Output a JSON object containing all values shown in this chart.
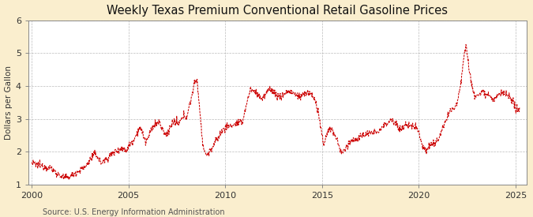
{
  "title": "Weekly Texas Premium Conventional Retail Gasoline Prices",
  "ylabel": "Dollars per Gallon",
  "source": "Source: U.S. Energy Information Administration",
  "line_color": "#cc0000",
  "background_color": "#faeece",
  "plot_background": "#ffffff",
  "grid_color": "#aaaaaa",
  "ylim": [
    1,
    6
  ],
  "yticks": [
    1,
    2,
    3,
    4,
    5,
    6
  ],
  "xticks": [
    2000,
    2005,
    2010,
    2015,
    2020,
    2025
  ],
  "title_fontsize": 10.5,
  "label_fontsize": 7.5,
  "tick_fontsize": 8,
  "source_fontsize": 7,
  "anchors": [
    [
      2000.0,
      1.65
    ],
    [
      2000.3,
      1.6
    ],
    [
      2000.7,
      1.55
    ],
    [
      2001.0,
      1.5
    ],
    [
      2001.4,
      1.3
    ],
    [
      2001.7,
      1.2
    ],
    [
      2002.0,
      1.25
    ],
    [
      2002.4,
      1.4
    ],
    [
      2002.8,
      1.55
    ],
    [
      2003.0,
      1.75
    ],
    [
      2003.3,
      1.95
    ],
    [
      2003.6,
      1.65
    ],
    [
      2003.9,
      1.8
    ],
    [
      2004.0,
      1.85
    ],
    [
      2004.3,
      2.0
    ],
    [
      2004.6,
      2.1
    ],
    [
      2004.9,
      2.05
    ],
    [
      2005.0,
      2.15
    ],
    [
      2005.3,
      2.4
    ],
    [
      2005.6,
      2.75
    ],
    [
      2005.9,
      2.3
    ],
    [
      2006.0,
      2.4
    ],
    [
      2006.3,
      2.8
    ],
    [
      2006.6,
      2.9
    ],
    [
      2006.9,
      2.5
    ],
    [
      2007.0,
      2.55
    ],
    [
      2007.3,
      2.9
    ],
    [
      2007.6,
      2.85
    ],
    [
      2007.9,
      3.1
    ],
    [
      2008.0,
      3.05
    ],
    [
      2008.2,
      3.5
    ],
    [
      2008.4,
      4.05
    ],
    [
      2008.55,
      4.2
    ],
    [
      2008.7,
      3.2
    ],
    [
      2008.85,
      2.2
    ],
    [
      2009.0,
      1.9
    ],
    [
      2009.2,
      2.0
    ],
    [
      2009.5,
      2.3
    ],
    [
      2009.8,
      2.6
    ],
    [
      2010.0,
      2.75
    ],
    [
      2010.3,
      2.8
    ],
    [
      2010.6,
      2.85
    ],
    [
      2010.9,
      2.9
    ],
    [
      2011.0,
      3.2
    ],
    [
      2011.3,
      3.9
    ],
    [
      2011.6,
      3.8
    ],
    [
      2011.9,
      3.6
    ],
    [
      2012.0,
      3.65
    ],
    [
      2012.3,
      3.95
    ],
    [
      2012.6,
      3.75
    ],
    [
      2012.9,
      3.65
    ],
    [
      2013.0,
      3.75
    ],
    [
      2013.3,
      3.85
    ],
    [
      2013.6,
      3.75
    ],
    [
      2013.9,
      3.65
    ],
    [
      2014.0,
      3.75
    ],
    [
      2014.3,
      3.8
    ],
    [
      2014.6,
      3.65
    ],
    [
      2014.8,
      3.2
    ],
    [
      2015.0,
      2.5
    ],
    [
      2015.1,
      2.2
    ],
    [
      2015.3,
      2.65
    ],
    [
      2015.5,
      2.7
    ],
    [
      2015.7,
      2.45
    ],
    [
      2015.9,
      2.15
    ],
    [
      2016.0,
      1.95
    ],
    [
      2016.2,
      2.05
    ],
    [
      2016.4,
      2.3
    ],
    [
      2016.6,
      2.35
    ],
    [
      2016.9,
      2.4
    ],
    [
      2017.0,
      2.45
    ],
    [
      2017.3,
      2.55
    ],
    [
      2017.6,
      2.55
    ],
    [
      2017.9,
      2.65
    ],
    [
      2018.0,
      2.65
    ],
    [
      2018.3,
      2.85
    ],
    [
      2018.6,
      3.0
    ],
    [
      2018.9,
      2.8
    ],
    [
      2019.0,
      2.65
    ],
    [
      2019.3,
      2.8
    ],
    [
      2019.6,
      2.8
    ],
    [
      2019.9,
      2.75
    ],
    [
      2020.0,
      2.65
    ],
    [
      2020.2,
      2.15
    ],
    [
      2020.4,
      2.05
    ],
    [
      2020.6,
      2.2
    ],
    [
      2020.9,
      2.3
    ],
    [
      2021.0,
      2.35
    ],
    [
      2021.3,
      2.8
    ],
    [
      2021.6,
      3.2
    ],
    [
      2021.9,
      3.4
    ],
    [
      2022.0,
      3.55
    ],
    [
      2022.2,
      4.2
    ],
    [
      2022.35,
      5.0
    ],
    [
      2022.45,
      5.3
    ],
    [
      2022.6,
      4.5
    ],
    [
      2022.8,
      3.9
    ],
    [
      2022.95,
      3.6
    ],
    [
      2023.0,
      3.7
    ],
    [
      2023.3,
      3.85
    ],
    [
      2023.6,
      3.75
    ],
    [
      2023.9,
      3.55
    ],
    [
      2024.0,
      3.65
    ],
    [
      2024.3,
      3.8
    ],
    [
      2024.6,
      3.7
    ],
    [
      2024.9,
      3.45
    ],
    [
      2025.0,
      3.35
    ],
    [
      2025.2,
      3.25
    ]
  ]
}
